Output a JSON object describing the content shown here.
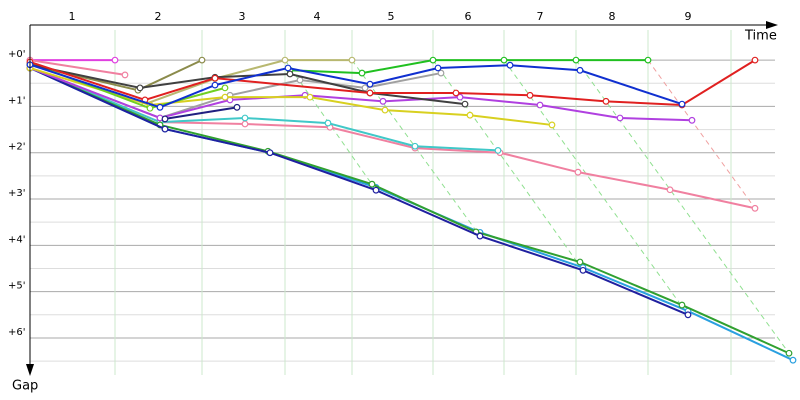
{
  "chart_data": {
    "type": "line",
    "x_label": "Time",
    "y_label": "Gap",
    "xlim": [
      0,
      745
    ],
    "ylim": [
      -0.65,
      6.8
    ],
    "xticks": [
      {
        "value": 42,
        "label": "1"
      },
      {
        "value": 128,
        "label": "2"
      },
      {
        "value": 212,
        "label": "3"
      },
      {
        "value": 287,
        "label": "4"
      },
      {
        "value": 361,
        "label": "5"
      },
      {
        "value": 438,
        "label": "6"
      },
      {
        "value": 510,
        "label": "7"
      },
      {
        "value": 582,
        "label": "8"
      },
      {
        "value": 658,
        "label": "9"
      }
    ],
    "xgrid": [
      85,
      172,
      255,
      322,
      403,
      474,
      546,
      618,
      701
    ],
    "yticks": [
      {
        "value": 0,
        "label": "+0'"
      },
      {
        "value": 1,
        "label": "+1'"
      },
      {
        "value": 2,
        "label": "+2'"
      },
      {
        "value": 3,
        "label": "+3'"
      },
      {
        "value": 4,
        "label": "+4'"
      },
      {
        "value": 5,
        "label": "+5'"
      },
      {
        "value": 6,
        "label": "+6'"
      }
    ],
    "yminor": [
      0.5,
      1.5,
      2.5,
      3.5,
      4.5,
      5.5,
      6.5
    ],
    "series": [
      {
        "color": "#90e090",
        "dashed": true,
        "x": [
          255,
          346
        ],
        "values": [
          0,
          2.81
        ]
      },
      {
        "color": "#90e090",
        "dashed": true,
        "x": [
          322,
          450
        ],
        "values": [
          0,
          3.8
        ]
      },
      {
        "color": "#90e090",
        "dashed": true,
        "x": [
          403,
          553
        ],
        "values": [
          0,
          4.54
        ]
      },
      {
        "color": "#90e090",
        "dashed": true,
        "x": [
          474,
          658
        ],
        "values": [
          0,
          5.5
        ]
      },
      {
        "color": "#90e090",
        "dashed": true,
        "x": [
          546,
          759
        ],
        "values": [
          0,
          6.33
        ]
      },
      {
        "color": "#f0a0a0",
        "dashed": true,
        "x": [
          618,
          725
        ],
        "values": [
          0,
          3.2
        ]
      },
      {
        "color": "#e040e0",
        "x": [
          0,
          85
        ],
        "values": [
          0,
          0
        ]
      },
      {
        "color": "#f080a0",
        "x": [
          0,
          95
        ],
        "values": [
          0,
          0.32
        ]
      },
      {
        "color": "#8b8b4b",
        "x": [
          0,
          108,
          172
        ],
        "values": [
          0.1,
          0.65,
          0
        ]
      },
      {
        "color": "#b8b870",
        "x": [
          115,
          185,
          255,
          322
        ],
        "values": [
          0.95,
          0.4,
          0,
          0
        ]
      },
      {
        "color": "#20c020",
        "x": [
          260,
          332,
          403,
          474,
          546,
          618
        ],
        "values": [
          0.22,
          0.28,
          0,
          0,
          0,
          0
        ]
      },
      {
        "color": "#f080a0",
        "x": [
          0,
          130,
          215,
          300,
          385,
          470,
          548,
          640,
          725
        ],
        "values": [
          0.17,
          1.34,
          1.38,
          1.45,
          1.9,
          2.0,
          2.42,
          2.8,
          3.2
        ]
      },
      {
        "color": "#40c8c8",
        "x": [
          0,
          130,
          215,
          298,
          385,
          468
        ],
        "values": [
          0.17,
          1.34,
          1.25,
          1.36,
          1.86,
          1.95
        ]
      },
      {
        "color": "#2aa0e0",
        "x": [
          0,
          135,
          240,
          346,
          450,
          553,
          658,
          763
        ],
        "values": [
          0.17,
          1.49,
          2.0,
          2.75,
          3.72,
          4.48,
          5.42,
          6.48
        ]
      },
      {
        "color": "#30a030",
        "x": [
          0,
          130,
          238,
          342,
          446,
          550,
          652,
          759
        ],
        "values": [
          0.17,
          1.4,
          1.97,
          2.68,
          3.71,
          4.36,
          5.29,
          6.33
        ]
      },
      {
        "color": "#2020a0",
        "x": [
          0,
          135,
          240,
          346,
          450,
          553,
          658
        ],
        "values": [
          0.17,
          1.49,
          2.0,
          2.81,
          3.8,
          4.54,
          5.5
        ]
      },
      {
        "color": "#a0a0a0",
        "x": [
          0,
          130,
          200,
          270,
          335,
          411
        ],
        "values": [
          0.17,
          1.25,
          0.76,
          0.43,
          0.6,
          0.28
        ]
      },
      {
        "color": "#b040e0",
        "x": [
          0,
          130,
          200,
          275,
          353,
          430,
          510,
          590,
          662
        ],
        "values": [
          0.17,
          1.25,
          0.86,
          0.76,
          0.89,
          0.8,
          0.97,
          1.25,
          1.3
        ]
      },
      {
        "color": "#d8d020",
        "x": [
          0,
          120,
          195,
          280,
          355,
          440,
          522
        ],
        "values": [
          0.17,
          0.97,
          0.8,
          0.8,
          1.08,
          1.19,
          1.4
        ]
      },
      {
        "color": "#70d020",
        "x": [
          0,
          120,
          195
        ],
        "values": [
          0.06,
          1.04,
          0.6
        ]
      },
      {
        "color": "#404040",
        "x": [
          0,
          110,
          185,
          260,
          340,
          435
        ],
        "values": [
          0.1,
          0.6,
          0.37,
          0.3,
          0.71,
          0.95
        ]
      },
      {
        "color": "#e02020",
        "x": [
          0,
          115,
          185,
          340,
          426,
          500,
          576,
          652,
          725
        ],
        "values": [
          0.04,
          0.86,
          0.39,
          0.71,
          0.71,
          0.76,
          0.89,
          0.97,
          0
        ]
      },
      {
        "color": "#1030d0",
        "x": [
          0,
          130,
          185,
          258,
          340,
          408,
          480,
          550,
          652
        ],
        "values": [
          0.1,
          1.02,
          0.54,
          0.17,
          0.52,
          0.17,
          0.11,
          0.22,
          0.95
        ]
      },
      {
        "color": "#202080",
        "x": [
          135,
          207
        ],
        "values": [
          1.27,
          1.02
        ]
      }
    ]
  }
}
